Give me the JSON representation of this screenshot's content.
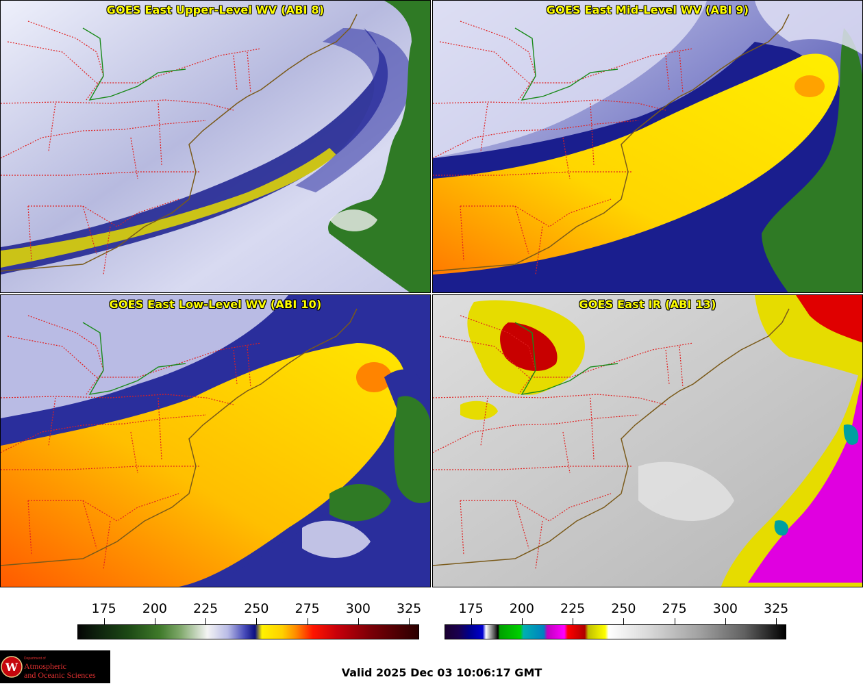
{
  "panels": [
    {
      "id": "upper",
      "title": "GOES East Upper-Level WV (ABI 8)"
    },
    {
      "id": "mid",
      "title": "GOES East Mid-Level WV (ABI 9)"
    },
    {
      "id": "low",
      "title": "GOES East Low-Level WV (ABI 10)"
    },
    {
      "id": "ir",
      "title": "GOES East IR (ABI 13)"
    }
  ],
  "colorbars": {
    "wv": {
      "ticks": [
        "175",
        "200",
        "225",
        "250",
        "275",
        "300",
        "325"
      ],
      "range": [
        162,
        330
      ]
    },
    "ir": {
      "ticks": [
        "175",
        "200",
        "225",
        "250",
        "275",
        "300",
        "325"
      ],
      "range": [
        162,
        330
      ]
    }
  },
  "logo": {
    "department_of": "Department of",
    "line1": "Atmospheric",
    "line2": "and Oceanic Sciences",
    "seal_letter": "W"
  },
  "valid_time": "Valid 2025 Dec 03 10:06:17 GMT",
  "colors": {
    "state_border": "#e02020",
    "coastline": "#7a5a1a",
    "lake_border": "#1a8a1a",
    "title": "#ffff00"
  }
}
